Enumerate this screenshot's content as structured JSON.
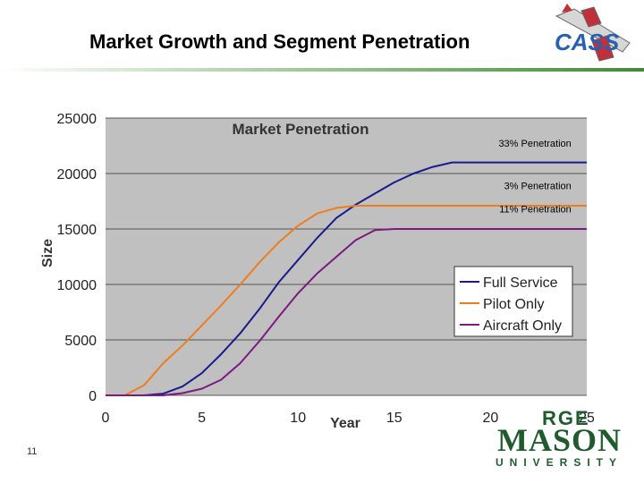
{
  "slide": {
    "title": "Market Growth and Segment Penetration",
    "slide_number": "11"
  },
  "logos": {
    "cass_text": "CASS",
    "gmu_top": "RGE",
    "gmu_mid": "MASON",
    "gmu_bottom": "UNIVERSITY"
  },
  "colors": {
    "plot_bg": "#c0c0c0",
    "full_service": "#1a1a8c",
    "pilot_only": "#f07c1c",
    "aircraft_only": "#7b1a80",
    "gmu_green": "#1f5b2d"
  },
  "chart_data": {
    "type": "line",
    "title": "Market Penetration",
    "xlabel": "Year",
    "ylabel": "Size",
    "xlim": [
      0,
      25
    ],
    "ylim": [
      0,
      25000
    ],
    "x_ticks": [
      "0",
      "5",
      "10",
      "15",
      "20",
      "25"
    ],
    "y_ticks": [
      "0",
      "5000",
      "10000",
      "15000",
      "20000",
      "25000"
    ],
    "grid": "horizontal",
    "legend_position": "center-right",
    "series": [
      {
        "name": "Full Service",
        "color_key": "full_service",
        "points": [
          [
            0,
            0
          ],
          [
            2,
            0
          ],
          [
            3,
            150
          ],
          [
            4,
            800
          ],
          [
            5,
            2000
          ],
          [
            6,
            3700
          ],
          [
            7,
            5600
          ],
          [
            8,
            7800
          ],
          [
            9,
            10200
          ],
          [
            10,
            12200
          ],
          [
            11,
            14200
          ],
          [
            12,
            16000
          ],
          [
            13,
            17200
          ],
          [
            14,
            18200
          ],
          [
            15,
            19200
          ],
          [
            16,
            20000
          ],
          [
            17,
            20600
          ],
          [
            18,
            21000
          ],
          [
            25,
            21000
          ]
        ]
      },
      {
        "name": "Pilot Only",
        "color_key": "pilot_only",
        "points": [
          [
            0,
            0
          ],
          [
            1,
            0
          ],
          [
            2,
            900
          ],
          [
            3,
            2900
          ],
          [
            4,
            4500
          ],
          [
            5,
            6300
          ],
          [
            6,
            8100
          ],
          [
            7,
            10000
          ],
          [
            8,
            12000
          ],
          [
            9,
            13800
          ],
          [
            10,
            15300
          ],
          [
            11,
            16400
          ],
          [
            12,
            16900
          ],
          [
            13,
            17100
          ],
          [
            25,
            17100
          ]
        ]
      },
      {
        "name": "Aircraft Only",
        "color_key": "aircraft_only",
        "points": [
          [
            0,
            0
          ],
          [
            3,
            0
          ],
          [
            4,
            200
          ],
          [
            5,
            600
          ],
          [
            6,
            1400
          ],
          [
            7,
            2900
          ],
          [
            8,
            4900
          ],
          [
            9,
            7100
          ],
          [
            10,
            9200
          ],
          [
            11,
            11000
          ],
          [
            12,
            12500
          ],
          [
            13,
            14000
          ],
          [
            14,
            14900
          ],
          [
            15,
            15000
          ],
          [
            25,
            15000
          ]
        ]
      }
    ],
    "annotations": [
      {
        "text": "33% Penetration",
        "x": 24.2,
        "y": 22400
      },
      {
        "text": "3% Penetration",
        "x": 24.2,
        "y": 18600
      },
      {
        "text": "11% Penetration",
        "x": 24.2,
        "y": 16500
      }
    ]
  }
}
